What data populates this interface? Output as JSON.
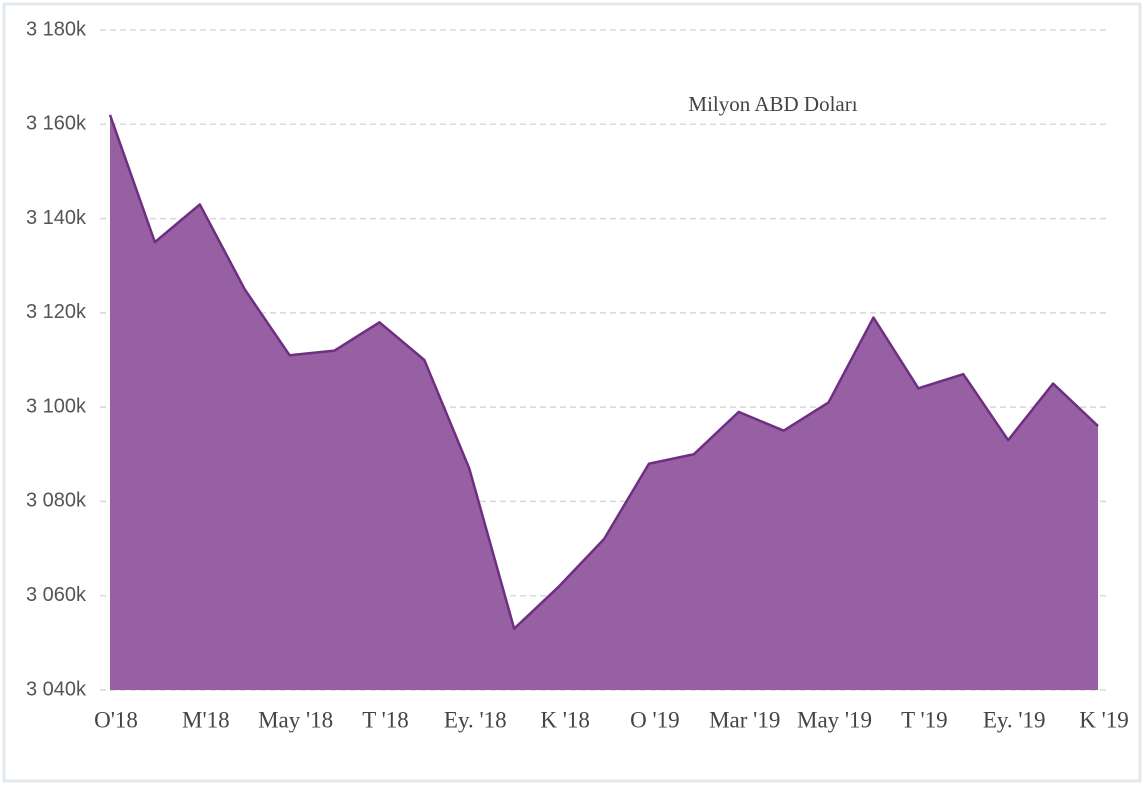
{
  "chart_data": {
    "type": "area",
    "annotation": "Milyon ABD Doları",
    "categories": [
      "O'18",
      null,
      "M'18",
      null,
      "May '18",
      null,
      "T '18",
      null,
      "Ey. '18",
      null,
      "K '18",
      null,
      "O '19",
      null,
      "Mar '19",
      null,
      "May '19",
      null,
      "T '19",
      null,
      "Ey. '19",
      null,
      "K '19"
    ],
    "values": [
      3162000,
      3135000,
      3143000,
      3125000,
      3111000,
      3112000,
      3118000,
      3110000,
      3087000,
      3053000,
      3062000,
      3072000,
      3088000,
      3090000,
      3099000,
      3095000,
      3101000,
      3119000,
      3104000,
      3107000,
      3093000,
      3105000,
      3096000
    ],
    "color": "#9660a3",
    "line_color": "#6e2f82",
    "ylim": [
      3040000,
      3180000
    ],
    "yticks": [
      {
        "value": 3040000,
        "label": "3 040k"
      },
      {
        "value": 3060000,
        "label": "3 060k"
      },
      {
        "value": 3080000,
        "label": "3 080k"
      },
      {
        "value": 3100000,
        "label": "3 100k"
      },
      {
        "value": 3120000,
        "label": "3 120k"
      },
      {
        "value": 3140000,
        "label": "3 140k"
      },
      {
        "value": 3160000,
        "label": "3 160k"
      },
      {
        "value": 3180000,
        "label": "3 180k"
      }
    ],
    "grid": true
  }
}
